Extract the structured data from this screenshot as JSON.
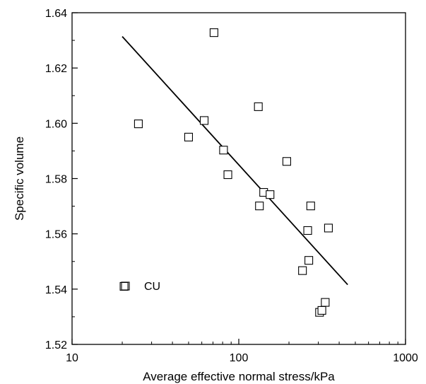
{
  "chart_data": {
    "type": "scatter",
    "xlabel": "Average effective normal stress/kPa",
    "ylabel": "Specific volume",
    "xscale": "log",
    "xlim": [
      10,
      1000
    ],
    "ylim": [
      1.52,
      1.64
    ],
    "x_ticks": [
      10,
      100,
      1000
    ],
    "y_ticks": [
      1.52,
      1.54,
      1.56,
      1.58,
      1.6,
      1.62,
      1.64
    ],
    "x_tick_labels": [
      "10",
      "100",
      "1000"
    ],
    "y_tick_labels": [
      "1.52",
      "1.54",
      "1.56",
      "1.58",
      "1.60",
      "1.62",
      "1.64"
    ],
    "grid": false,
    "legend": {
      "position": "bottom-left",
      "entries": [
        {
          "label": "CU",
          "marker": "open-square"
        }
      ]
    },
    "series": [
      {
        "name": "CU",
        "marker": "open-square",
        "points": [
          {
            "x": 20.5,
            "y": 1.541
          },
          {
            "x": 25,
            "y": 1.5998
          },
          {
            "x": 50,
            "y": 1.595
          },
          {
            "x": 62,
            "y": 1.601
          },
          {
            "x": 71,
            "y": 1.6328
          },
          {
            "x": 81,
            "y": 1.5903
          },
          {
            "x": 86,
            "y": 1.5814
          },
          {
            "x": 131,
            "y": 1.606
          },
          {
            "x": 133,
            "y": 1.5701
          },
          {
            "x": 141,
            "y": 1.575
          },
          {
            "x": 154,
            "y": 1.5742
          },
          {
            "x": 194,
            "y": 1.5862
          },
          {
            "x": 241,
            "y": 1.5467
          },
          {
            "x": 259,
            "y": 1.5612
          },
          {
            "x": 263,
            "y": 1.5504
          },
          {
            "x": 270,
            "y": 1.5701
          },
          {
            "x": 305,
            "y": 1.5316
          },
          {
            "x": 315,
            "y": 1.5323
          },
          {
            "x": 330,
            "y": 1.5352
          },
          {
            "x": 345,
            "y": 1.5621
          }
        ]
      }
    ],
    "fit_line": {
      "x": [
        20,
        450
      ],
      "y": [
        1.6314,
        1.5416
      ]
    }
  }
}
